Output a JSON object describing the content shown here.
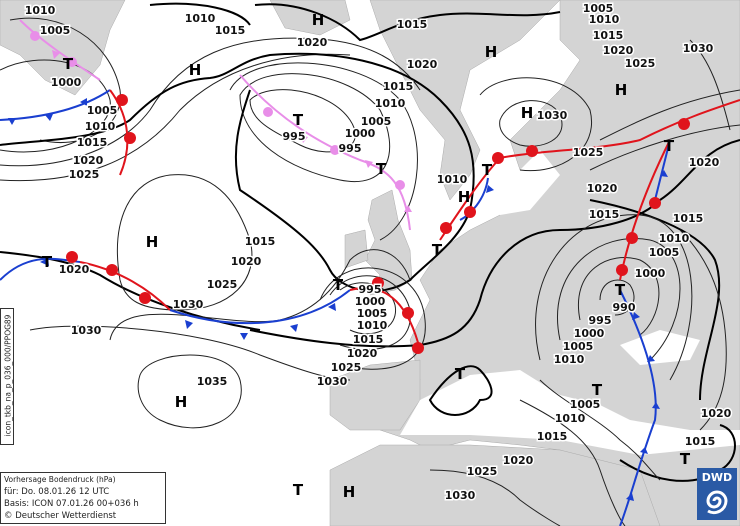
{
  "info": {
    "title": "Vorhersage Bodendruck (hPa)",
    "valid": "für:  Do. 08.01.26  12 UTC",
    "basis": "Basis: ICON  07.01.26 00+036 h",
    "copyright": "© Deutscher Wetterdienst"
  },
  "product_code": "icon_tkb_na_p_036_000/PPOG89",
  "logo": {
    "text": "DWD",
    "color": "#2a5aa5"
  },
  "colors": {
    "land": "#d4d4d4",
    "sea": "#ffffff",
    "cold_front": "#1a3fd0",
    "warm_front": "#e0141c",
    "occlusion": "#e88ee8"
  },
  "high_label": "H",
  "low_label": "T",
  "isobar_labels": [
    "1010",
    "1005",
    "1000",
    "1005",
    "1010",
    "1015",
    "1020",
    "1025",
    "1010",
    "1015",
    "1020",
    "1015",
    "1020",
    "1015",
    "1010",
    "1005",
    "1000",
    "995",
    "995",
    "1005",
    "1010",
    "1015",
    "1020",
    "1025",
    "1030",
    "1030",
    "1025",
    "1020",
    "1015",
    "1020",
    "1015",
    "1010",
    "1005",
    "1000",
    "990",
    "995",
    "1000",
    "1005",
    "1010",
    "1005",
    "1010",
    "1015",
    "1020",
    "1025",
    "1030",
    "1020",
    "1015",
    "1010",
    "1015",
    "1020",
    "1025",
    "1030",
    "1030",
    "1035",
    "1020",
    "995",
    "1000",
    "1005",
    "1010",
    "1015",
    "1020",
    "1025",
    "1030"
  ]
}
